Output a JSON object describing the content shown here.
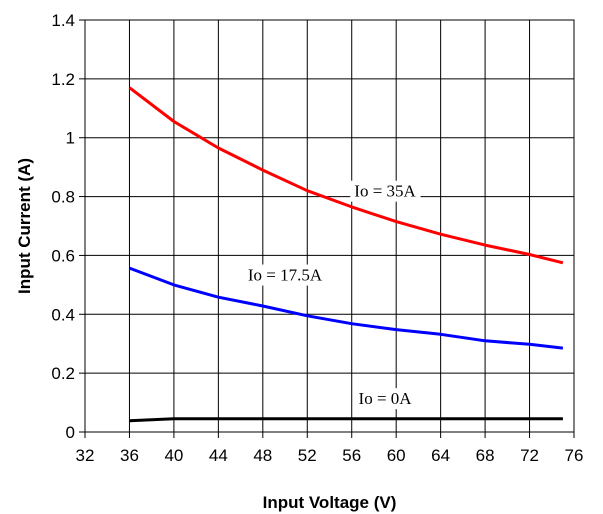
{
  "chart_data": {
    "type": "line",
    "xlabel": "Input Voltage (V)",
    "ylabel": "Input Current (A)",
    "xlim": [
      32,
      76
    ],
    "ylim": [
      0,
      1.4
    ],
    "xticks": [
      "32",
      "36",
      "40",
      "44",
      "48",
      "52",
      "56",
      "60",
      "64",
      "68",
      "72",
      "76"
    ],
    "yticks": [
      "0",
      "0.2",
      "0.4",
      "0.6",
      "0.8",
      "1",
      "1.2",
      "1.4"
    ],
    "grid": true,
    "series": [
      {
        "name": "Io = 35A",
        "color": "#ff0000",
        "x": [
          36,
          40,
          44,
          48,
          52,
          56,
          60,
          64,
          68,
          72,
          75
        ],
        "y": [
          1.17,
          1.055,
          0.965,
          0.89,
          0.82,
          0.765,
          0.715,
          0.672,
          0.635,
          0.603,
          0.575
        ]
      },
      {
        "name": "Io = 17.5A",
        "color": "#0000ff",
        "x": [
          36,
          40,
          44,
          48,
          52,
          56,
          60,
          64,
          68,
          72,
          75
        ],
        "y": [
          0.557,
          0.5,
          0.458,
          0.428,
          0.395,
          0.368,
          0.348,
          0.332,
          0.31,
          0.298,
          0.285
        ]
      },
      {
        "name": "Io = 0A",
        "color": "#000000",
        "x": [
          36,
          40,
          44,
          48,
          52,
          56,
          60,
          64,
          68,
          72,
          75
        ],
        "y": [
          0.038,
          0.045,
          0.045,
          0.045,
          0.045,
          0.045,
          0.045,
          0.045,
          0.045,
          0.045,
          0.045
        ]
      }
    ],
    "annotations": [
      {
        "text": "Io = 35A",
        "x": 59,
        "y": 0.82
      },
      {
        "text": "Io = 17.5A",
        "x": 50,
        "y": 0.535
      },
      {
        "text": "Io = 0A",
        "x": 59,
        "y": 0.115
      }
    ]
  }
}
